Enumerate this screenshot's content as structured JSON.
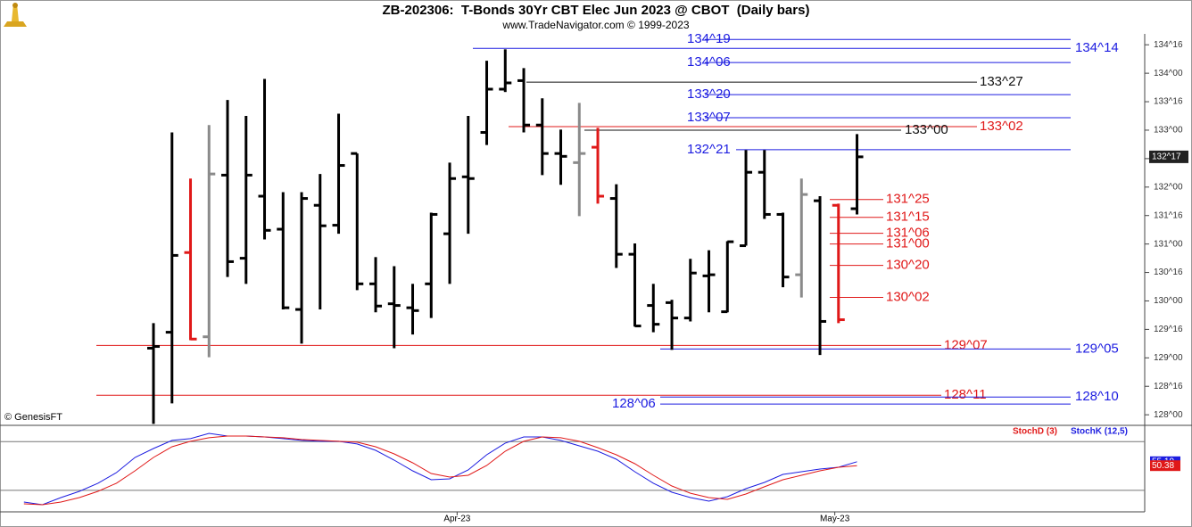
{
  "header": {
    "title": "ZB-202306:  T-Bonds 30Yr CBT Elec Jun 2023 @ CBOT  (Daily bars)",
    "subtitle": "www.TradeNavigator.com © 1999-2023"
  },
  "copyright": "© GenesisFT",
  "chart_data": [
    {
      "type": "ohlc",
      "x": [
        0,
        1,
        2,
        3,
        4,
        5,
        6,
        7,
        8,
        9,
        10,
        11,
        12,
        13,
        14,
        15,
        16,
        17,
        18,
        19,
        20,
        21,
        22,
        23,
        24,
        25,
        26,
        27,
        28,
        29,
        30,
        31,
        32,
        33,
        34,
        35,
        36,
        37,
        38
      ],
      "open": [
        129.17,
        129.45,
        130.85,
        129.37,
        132.21,
        130.75,
        131.84,
        131.26,
        129.85,
        131.68,
        131.33,
        132.59,
        130.3,
        129.95,
        129.88,
        130.3,
        131.18,
        132.18,
        132.96,
        133.72,
        133.87,
        133.09,
        132.59,
        132.43,
        132.7,
        131.8,
        130.82,
        129.92,
        129.97,
        129.7,
        130.44,
        129.81,
        130.97,
        132.26,
        131.52,
        130.46,
        131.76,
        131.68,
        131.62
      ],
      "high": [
        129.61,
        132.96,
        132.15,
        133.09,
        133.53,
        133.25,
        133.9,
        131.91,
        131.91,
        132.23,
        133.29,
        132.59,
        130.77,
        130.61,
        130.3,
        131.55,
        132.43,
        133.25,
        134.22,
        134.42,
        134.09,
        133.56,
        133.01,
        133.48,
        133.04,
        132.05,
        131.01,
        130.3,
        130.02,
        130.74,
        130.89,
        131.05,
        132.65,
        132.65,
        131.55,
        132.15,
        131.84,
        131.71,
        132.93
      ],
      "low": [
        127.84,
        128.2,
        129.31,
        129.01,
        130.42,
        130.3,
        131.08,
        129.85,
        129.25,
        129.85,
        131.18,
        130.19,
        129.8,
        129.17,
        129.41,
        129.7,
        130.3,
        131.18,
        132.74,
        133.67,
        132.96,
        132.21,
        132.04,
        131.49,
        131.71,
        130.58,
        129.55,
        129.45,
        129.14,
        129.64,
        129.8,
        129.8,
        130.97,
        131.44,
        130.24,
        130.06,
        129.05,
        129.61,
        131.52
      ],
      "close": [
        129.2,
        130.8,
        129.33,
        132.23,
        130.69,
        132.21,
        131.24,
        129.88,
        131.8,
        131.32,
        132.38,
        130.3,
        129.91,
        129.92,
        129.83,
        131.52,
        132.15,
        132.15,
        133.72,
        133.83,
        133.09,
        132.59,
        132.54,
        132.59,
        131.84,
        130.82,
        129.56,
        129.59,
        129.7,
        130.49,
        130.46,
        131.04,
        132.26,
        131.52,
        130.42,
        131.87,
        129.64,
        129.67,
        132.53125
      ],
      "bar_colors": [
        "#000",
        "#000",
        "#e01818",
        "#8a8a8a",
        "#000",
        "#000",
        "#000",
        "#000",
        "#000",
        "#000",
        "#000",
        "#000",
        "#000",
        "#000",
        "#000",
        "#000",
        "#000",
        "#000",
        "#000",
        "#000",
        "#000",
        "#000",
        "#000",
        "#8a8a8a",
        "#e01818",
        "#000",
        "#000",
        "#000",
        "#000",
        "#000",
        "#000",
        "#000",
        "#000",
        "#000",
        "#000",
        "#8a8a8a",
        "#000",
        "#e01818",
        "#000"
      ],
      "xlim": [
        -8.29,
        53.54
      ],
      "ylim": [
        127.83,
        134.66
      ],
      "yticks": [
        {
          "value": 134.5,
          "label": "134^16"
        },
        {
          "value": 134,
          "label": "134^00"
        },
        {
          "value": 133.5,
          "label": "133^16"
        },
        {
          "value": 133,
          "label": "133^00"
        },
        {
          "value": 132.5,
          "label": "132^16"
        },
        {
          "value": 132,
          "label": "132^00"
        },
        {
          "value": 131.5,
          "label": "131^16"
        },
        {
          "value": 131,
          "label": "131^00"
        },
        {
          "value": 130.5,
          "label": "130^16"
        },
        {
          "value": 130,
          "label": "130^00"
        },
        {
          "value": 129.5,
          "label": "129^16"
        },
        {
          "value": 129,
          "label": "129^00"
        },
        {
          "value": 128.5,
          "label": "128^16"
        },
        {
          "value": 128,
          "label": "128^00"
        }
      ],
      "last_price": {
        "value": 132.53125,
        "label": "132^17"
      },
      "levels": [
        {
          "value": 134.59375,
          "label": "134^19",
          "color": "#1c1ce0"
        },
        {
          "value": 134.4375,
          "label": "134^14",
          "color": "#1c1ce0"
        },
        {
          "value": 134.1875,
          "label": "134^06",
          "color": "#1c1ce0"
        },
        {
          "value": 133.84375,
          "label": "133^27",
          "color": "#111111"
        },
        {
          "value": 133.625,
          "label": "133^20",
          "color": "#1c1ce0"
        },
        {
          "value": 133.21875,
          "label": "133^07",
          "color": "#1c1ce0"
        },
        {
          "value": 133.0625,
          "label": "133^02",
          "color": "#e01818"
        },
        {
          "value": 133,
          "label": "133^00",
          "color": "#111111"
        },
        {
          "value": 132.65625,
          "label": "132^21",
          "color": "#1c1ce0"
        },
        {
          "value": 131.78125,
          "label": "131^25",
          "color": "#e01818"
        },
        {
          "value": 131.46875,
          "label": "131^15",
          "color": "#e01818"
        },
        {
          "value": 131.1875,
          "label": "131^06",
          "color": "#e01818"
        },
        {
          "value": 131,
          "label": "131^00",
          "color": "#e01818"
        },
        {
          "value": 130.625,
          "label": "130^20",
          "color": "#e01818"
        },
        {
          "value": 130.0625,
          "label": "130^02",
          "color": "#e01818"
        },
        {
          "value": 129.21875,
          "label": "129^07",
          "color": "#e01818"
        },
        {
          "value": 129.15625,
          "label": "129^05",
          "color": "#1c1ce0"
        },
        {
          "value": 128.34375,
          "label": "128^11",
          "color": "#e01818"
        },
        {
          "value": 128.3125,
          "label": "128^10",
          "color": "#1c1ce0"
        },
        {
          "value": 128.1875,
          "label": "128^06",
          "color": "#1c1ce0"
        }
      ]
    },
    {
      "type": "line",
      "x": [
        -7,
        -6,
        -5,
        -4,
        -3,
        -2,
        -1,
        0,
        1,
        2,
        3,
        4,
        5,
        6,
        7,
        8,
        9,
        10,
        11,
        12,
        13,
        14,
        15,
        16,
        17,
        18,
        19,
        20,
        21,
        22,
        23,
        24,
        25,
        26,
        27,
        28,
        29,
        30,
        31,
        32,
        33,
        34,
        35,
        36,
        37,
        38
      ],
      "series": [
        {
          "name": "StochD (3)",
          "color": "#e01818",
          "values": [
            3.4,
            2.3,
            5.6,
            11.1,
            18.8,
            28.7,
            44.0,
            60.5,
            73.7,
            80.3,
            84.7,
            86.8,
            86.8,
            85.7,
            84.7,
            82.5,
            81.4,
            80.3,
            79.2,
            73.7,
            64.9,
            53.9,
            40.7,
            36.3,
            38.5,
            50.6,
            68.2,
            80.3,
            85.7,
            84.7,
            80.3,
            72.6,
            63.8,
            52.8,
            38.5,
            25.3,
            16.5,
            11.1,
            8.9,
            15.5,
            24.3,
            33.0,
            38.5,
            44.0,
            48.4,
            50.38
          ]
        },
        {
          "name": "StochK (12,5)",
          "color": "#1c1ce0",
          "values": [
            5.6,
            2.3,
            11.1,
            18.8,
            28.7,
            41.8,
            60.5,
            71.5,
            81.4,
            83.6,
            90.1,
            86.8,
            86.8,
            85.7,
            83.6,
            81.4,
            80.3,
            80.3,
            77.0,
            69.3,
            57.2,
            44.0,
            33.0,
            34.1,
            45.1,
            63.8,
            78.1,
            85.7,
            85.7,
            81.4,
            74.8,
            68.2,
            58.3,
            42.9,
            28.7,
            17.7,
            11.1,
            6.7,
            12.2,
            22.1,
            29.7,
            39.6,
            42.9,
            46.2,
            48.4,
            55.19
          ]
        }
      ],
      "levels": [
        80,
        20
      ],
      "xlim": [
        -8.29,
        53.54
      ],
      "ylim": [
        -6.5,
        100
      ],
      "xticks": [
        {
          "value": 16.4,
          "label": "Apr-23"
        },
        {
          "value": 36.8,
          "label": "May-23"
        }
      ]
    }
  ]
}
